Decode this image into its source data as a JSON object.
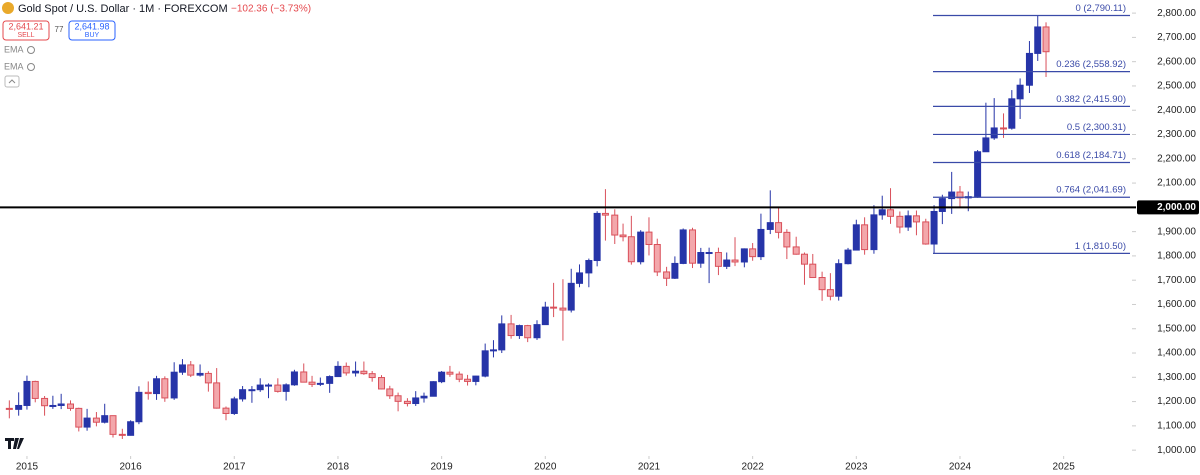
{
  "header": {
    "symbol": "Gold Spot / U.S. Dollar · 1M · FOREXCOM",
    "change": "−102.36 (−3.73%)",
    "sell_price": "2,641.21",
    "sell_label": "SELL",
    "spread": "77",
    "buy_price": "2,641.98",
    "buy_label": "BUY",
    "indicators": [
      "EMA",
      "EMA"
    ]
  },
  "chart_data": {
    "type": "candlestick",
    "up_color": "#2634a8",
    "down_color": "#d9505a",
    "down_fill": "#f3a7ab",
    "grid": false,
    "xlim": [
      2014.74,
      2025.64
    ],
    "xticks": [
      2015,
      2016,
      2017,
      2018,
      2019,
      2020,
      2021,
      2022,
      2023,
      2024,
      2025
    ],
    "ylim": [
      980,
      2854
    ],
    "yticks": [
      {
        "value": 1000,
        "label": "1,000.00"
      },
      {
        "value": 1100,
        "label": "1,100.00"
      },
      {
        "value": 1200,
        "label": "1,200.00"
      },
      {
        "value": 1300,
        "label": "1,300.00"
      },
      {
        "value": 1400,
        "label": "1,400.00"
      },
      {
        "value": 1500,
        "label": "1,500.00"
      },
      {
        "value": 1600,
        "label": "1,600.00"
      },
      {
        "value": 1700,
        "label": "1,700.00"
      },
      {
        "value": 1800,
        "label": "1,800.00"
      },
      {
        "value": 1900,
        "label": "1,900.00"
      },
      {
        "value": 2100,
        "label": "2,100.00"
      },
      {
        "value": 2200,
        "label": "2,200.00"
      },
      {
        "value": 2300,
        "label": "2,300.00"
      },
      {
        "value": 2400,
        "label": "2,400.00"
      },
      {
        "value": 2500,
        "label": "2,500.00"
      },
      {
        "value": 2600,
        "label": "2,600.00"
      },
      {
        "value": 2700,
        "label": "2,700.00"
      },
      {
        "value": 2800,
        "label": "2,800.00"
      }
    ],
    "hline": {
      "value": 2000,
      "label": "2,000.00",
      "color": "#000000"
    },
    "fib_color": "#3a4aa8",
    "fib_levels": [
      {
        "value": 2790.11,
        "label": "0 (2,790.11)"
      },
      {
        "value": 2558.92,
        "label": "0.236 (2,558.92)"
      },
      {
        "value": 2415.9,
        "label": "0.382 (2,415.90)"
      },
      {
        "value": 2300.31,
        "label": "0.5 (2,300.31)"
      },
      {
        "value": 2184.71,
        "label": "0.618 (2,184.71)"
      },
      {
        "value": 2041.69,
        "label": "0.764 (2,041.69)"
      },
      {
        "value": 1810.5,
        "label": "1 (1,810.50)"
      }
    ],
    "x": [
      2014.83,
      2014.92,
      2015.0,
      2015.08,
      2015.17,
      2015.25,
      2015.33,
      2015.42,
      2015.5,
      2015.58,
      2015.67,
      2015.75,
      2015.83,
      2015.92,
      2016.0,
      2016.08,
      2016.17,
      2016.25,
      2016.33,
      2016.42,
      2016.5,
      2016.58,
      2016.67,
      2016.75,
      2016.83,
      2016.92,
      2017.0,
      2017.08,
      2017.17,
      2017.25,
      2017.33,
      2017.42,
      2017.5,
      2017.58,
      2017.67,
      2017.75,
      2017.83,
      2017.92,
      2018.0,
      2018.08,
      2018.17,
      2018.25,
      2018.33,
      2018.42,
      2018.5,
      2018.58,
      2018.67,
      2018.75,
      2018.83,
      2018.92,
      2019.0,
      2019.08,
      2019.17,
      2019.25,
      2019.33,
      2019.42,
      2019.5,
      2019.58,
      2019.67,
      2019.75,
      2019.83,
      2019.92,
      2020.0,
      2020.08,
      2020.17,
      2020.25,
      2020.33,
      2020.42,
      2020.5,
      2020.58,
      2020.67,
      2020.75,
      2020.83,
      2020.92,
      2021.0,
      2021.08,
      2021.17,
      2021.25,
      2021.33,
      2021.42,
      2021.5,
      2021.58,
      2021.67,
      2021.75,
      2021.83,
      2021.92,
      2022.0,
      2022.08,
      2022.17,
      2022.25,
      2022.33,
      2022.42,
      2022.5,
      2022.58,
      2022.67,
      2022.75,
      2022.83,
      2022.92,
      2023.0,
      2023.08,
      2023.17,
      2023.25,
      2023.33,
      2023.42,
      2023.5,
      2023.58,
      2023.67,
      2023.75,
      2023.83,
      2023.92,
      2024.0,
      2024.08,
      2024.17,
      2024.25,
      2024.33,
      2024.42,
      2024.5,
      2024.58,
      2024.67,
      2024.75,
      2024.83
    ],
    "open": [
      1172,
      1168,
      1184,
      1283,
      1213,
      1183,
      1184,
      1190,
      1172,
      1095,
      1132,
      1115,
      1142,
      1065,
      1061,
      1117,
      1238,
      1233,
      1294,
      1215,
      1321,
      1351,
      1309,
      1316,
      1277,
      1173,
      1151,
      1211,
      1249,
      1249,
      1268,
      1268,
      1242,
      1269,
      1322,
      1280,
      1271,
      1275,
      1303,
      1345,
      1318,
      1325,
      1315,
      1299,
      1252,
      1224,
      1201,
      1192,
      1215,
      1222,
      1282,
      1321,
      1313,
      1292,
      1283,
      1305,
      1409,
      1413,
      1520,
      1472,
      1513,
      1463,
      1517,
      1589,
      1585,
      1577,
      1687,
      1730,
      1781,
      1975,
      1968,
      1886,
      1879,
      1776,
      1898,
      1847,
      1734,
      1708,
      1769,
      1907,
      1770,
      1814,
      1814,
      1757,
      1783,
      1775,
      1829,
      1797,
      1909,
      1937,
      1897,
      1837,
      1807,
      1766,
      1711,
      1661,
      1634,
      1768,
      1824,
      1928,
      1826,
      1969,
      1990,
      1963,
      1919,
      1965,
      1940,
      1849,
      1983,
      2036,
      2063,
      2039,
      2044,
      2229,
      2286,
      2327,
      2326,
      2447,
      2503,
      2634,
      2743
    ],
    "high": [
      1205,
      1238,
      1307,
      1286,
      1223,
      1224,
      1232,
      1205,
      1175,
      1170,
      1157,
      1191,
      1142,
      1088,
      1123,
      1263,
      1283,
      1306,
      1304,
      1362,
      1375,
      1367,
      1353,
      1325,
      1338,
      1180,
      1220,
      1264,
      1264,
      1296,
      1275,
      1296,
      1275,
      1331,
      1357,
      1306,
      1299,
      1308,
      1366,
      1361,
      1365,
      1365,
      1326,
      1309,
      1265,
      1237,
      1214,
      1243,
      1237,
      1284,
      1326,
      1347,
      1324,
      1310,
      1306,
      1439,
      1453,
      1555,
      1557,
      1517,
      1516,
      1535,
      1611,
      1689,
      1704,
      1747,
      1765,
      1789,
      1984,
      2075,
      1992,
      1933,
      1965,
      1906,
      1959,
      1871,
      1755,
      1798,
      1913,
      1916,
      1833,
      1834,
      1834,
      1814,
      1877,
      1831,
      1853,
      1974,
      2070,
      1998,
      1910,
      1879,
      1814,
      1808,
      1735,
      1729,
      1786,
      1833,
      1949,
      1959,
      2009,
      2048,
      2079,
      1983,
      1987,
      1987,
      1953,
      2009,
      2052,
      2146,
      2088,
      2065,
      2236,
      2431,
      2450,
      2387,
      2483,
      2531,
      2685,
      2790,
      2762
    ],
    "low": [
      1131,
      1142,
      1167,
      1197,
      1142,
      1170,
      1169,
      1162,
      1077,
      1080,
      1098,
      1110,
      1052,
      1046,
      1060,
      1107,
      1208,
      1207,
      1199,
      1207,
      1310,
      1301,
      1303,
      1241,
      1171,
      1123,
      1145,
      1200,
      1195,
      1240,
      1214,
      1237,
      1204,
      1265,
      1279,
      1260,
      1264,
      1236,
      1303,
      1307,
      1303,
      1310,
      1282,
      1250,
      1211,
      1160,
      1180,
      1182,
      1196,
      1221,
      1276,
      1302,
      1280,
      1266,
      1267,
      1300,
      1382,
      1400,
      1459,
      1458,
      1445,
      1454,
      1517,
      1548,
      1451,
      1567,
      1671,
      1671,
      1757,
      1863,
      1849,
      1860,
      1764,
      1765,
      1802,
      1717,
      1676,
      1705,
      1766,
      1750,
      1751,
      1688,
      1721,
      1746,
      1758,
      1753,
      1780,
      1783,
      1890,
      1872,
      1787,
      1805,
      1681,
      1709,
      1615,
      1617,
      1616,
      1765,
      1823,
      1805,
      1809,
      1949,
      1932,
      1893,
      1903,
      1885,
      1846,
      1810,
      1931,
      1973,
      2002,
      1984,
      2039,
      2228,
      2278,
      2286,
      2320,
      2364,
      2471,
      2603,
      2537
    ],
    "close": [
      1168,
      1184,
      1283,
      1213,
      1183,
      1184,
      1190,
      1172,
      1095,
      1132,
      1115,
      1142,
      1065,
      1061,
      1117,
      1238,
      1233,
      1294,
      1215,
      1321,
      1351,
      1309,
      1316,
      1277,
      1173,
      1151,
      1211,
      1249,
      1249,
      1268,
      1268,
      1242,
      1269,
      1322,
      1280,
      1271,
      1275,
      1303,
      1345,
      1318,
      1325,
      1315,
      1299,
      1252,
      1224,
      1201,
      1192,
      1215,
      1222,
      1282,
      1321,
      1313,
      1292,
      1283,
      1305,
      1409,
      1413,
      1520,
      1472,
      1513,
      1463,
      1517,
      1589,
      1585,
      1577,
      1687,
      1730,
      1781,
      1975,
      1968,
      1886,
      1879,
      1776,
      1898,
      1847,
      1734,
      1708,
      1769,
      1907,
      1770,
      1814,
      1814,
      1757,
      1783,
      1775,
      1829,
      1797,
      1909,
      1937,
      1897,
      1837,
      1807,
      1766,
      1711,
      1661,
      1634,
      1768,
      1824,
      1928,
      1826,
      1969,
      1990,
      1963,
      1919,
      1965,
      1940,
      1849,
      1983,
      2036,
      2063,
      2039,
      2044,
      2229,
      2286,
      2327,
      2326,
      2447,
      2503,
      2634,
      2743,
      2641
    ]
  }
}
